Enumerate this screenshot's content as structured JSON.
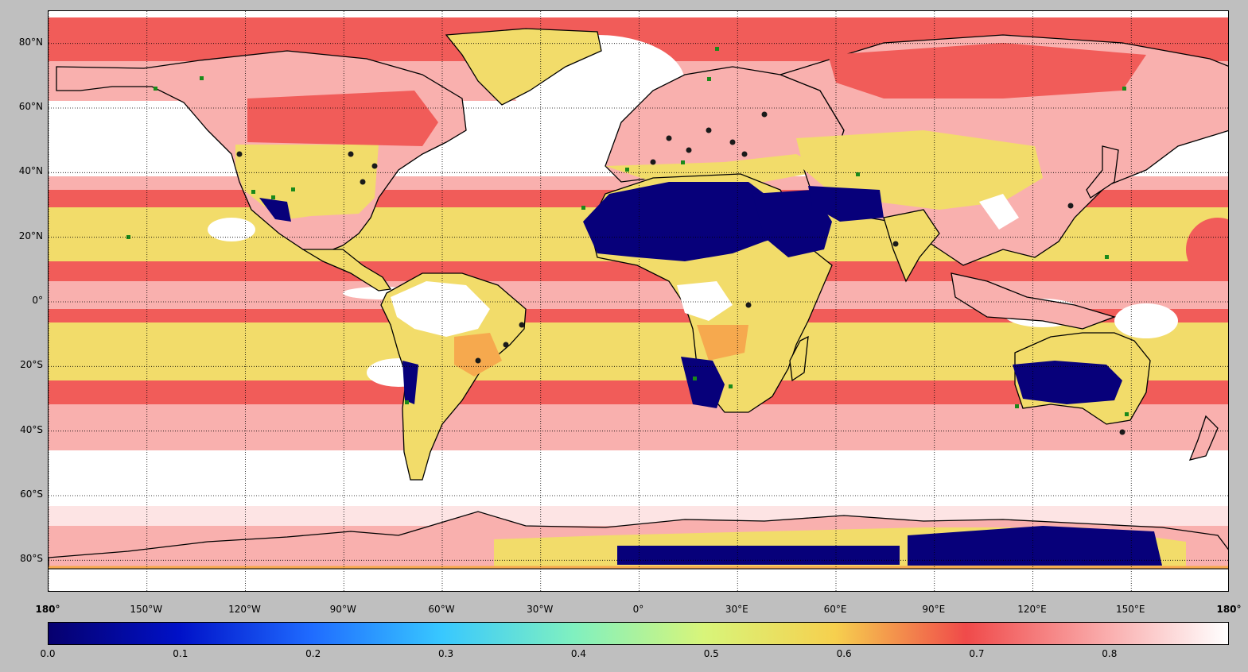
{
  "map": {
    "projection": "equirectangular",
    "grid": true,
    "lat_ticks": [
      "80°N",
      "60°N",
      "40°N",
      "20°N",
      "0°",
      "20°S",
      "40°S",
      "60°S",
      "80°S"
    ],
    "lat_values": [
      80,
      60,
      40,
      20,
      0,
      -20,
      -40,
      -60,
      -80
    ],
    "lon_ticks": [
      "180°",
      "150°W",
      "120°W",
      "90°W",
      "60°W",
      "30°W",
      "0°",
      "30°E",
      "60°E",
      "90°E",
      "120°E",
      "150°E",
      "180°"
    ],
    "lon_values": [
      -180,
      -150,
      -120,
      -90,
      -60,
      -30,
      0,
      30,
      60,
      90,
      120,
      150,
      180
    ]
  },
  "colorbar": {
    "ticks": [
      "0.0",
      "0.1",
      "0.2",
      "0.3",
      "0.4",
      "0.5",
      "0.6",
      "0.7",
      "0.8"
    ],
    "tick_values": [
      0.0,
      0.1,
      0.2,
      0.3,
      0.4,
      0.5,
      0.6,
      0.7,
      0.8
    ],
    "range": [
      0.0,
      0.89
    ],
    "stops": [
      "#06006e",
      "#0011c8",
      "#1f6bff",
      "#38c8ff",
      "#7ff0c0",
      "#d8f57a",
      "#f6d04e",
      "#f04a4a",
      "#f9a6a6",
      "#ffffff"
    ]
  },
  "colors": {
    "background": "#bfbfbf",
    "ocean_high": "#ffffff",
    "band_pink_light": "#f9b0ae",
    "band_red": "#f15c59",
    "band_yellow": "#f2dc6a",
    "desert_navy": "#07007a",
    "station_dot": "#1a1a1a",
    "station_square": "#1a8a1a"
  }
}
